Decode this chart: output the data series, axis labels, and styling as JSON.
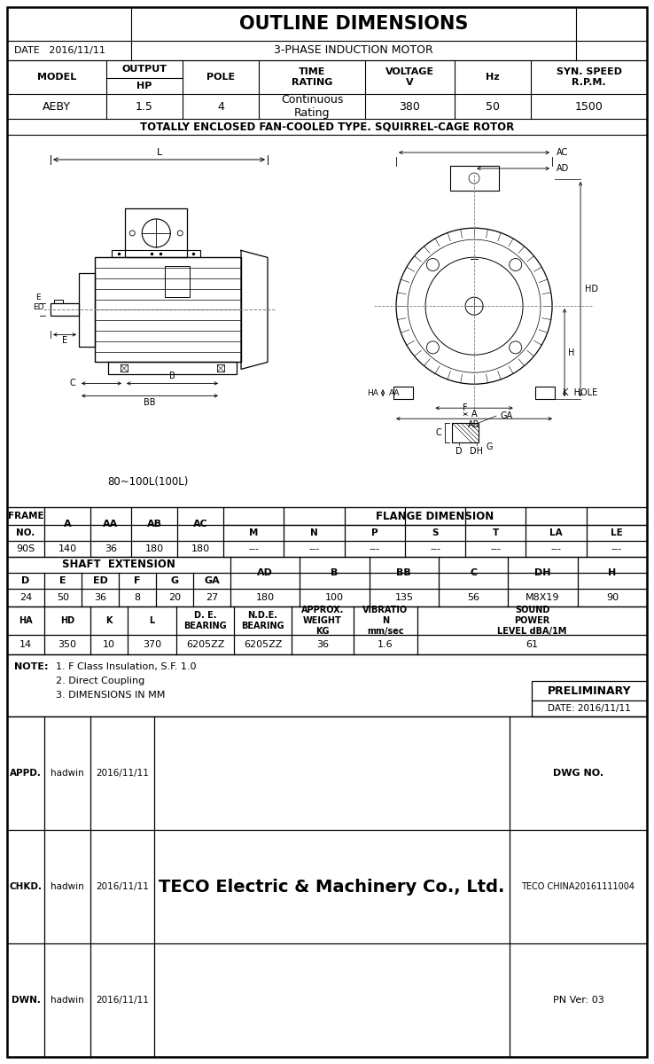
{
  "title": "OUTLINE DIMENSIONS",
  "subtitle": "3-PHASE INDUCTION MOTOR",
  "date": "DATE   2016/11/11",
  "type_desc": "TOTALLY ENCLOSED FAN-COOLED TYPE. SQUIRREL-CAGE ROTOR",
  "model_label": "MODEL",
  "output_label": "OUTPUT",
  "hp_label": "HP",
  "pole_label": "POLE",
  "time_rating_label": "TIME\nRATING",
  "voltage_label": "VOLTAGE\nV",
  "hz_label": "Hz",
  "syn_speed_label": "SYN. SPEED\nR.P.M.",
  "model_val": "AEBY",
  "hp_val": "1.5",
  "pole_val": "4",
  "time_rating_val": "Continuous\nRating",
  "voltage_val": "380",
  "hz_val": "50",
  "syn_speed_val": "1500",
  "frame_no": "90S",
  "A": "140",
  "AA": "36",
  "AB": "180",
  "AC": "180",
  "M": "---",
  "N": "---",
  "P": "---",
  "S": "---",
  "T": "---",
  "LA": "---",
  "LE": "---",
  "D": "24",
  "E": "50",
  "ED": "36",
  "F": "8",
  "G": "20",
  "GA": "27",
  "AD": "180",
  "B": "100",
  "BB": "135",
  "C": "56",
  "DH": "M8X19",
  "H": "90",
  "HA": "14",
  "HD": "350",
  "K": "10",
  "L": "370",
  "DE_BEARING": "6205ZZ",
  "NDE_BEARING": "6205ZZ",
  "WEIGHT": "36",
  "VIBRATION": "1.6",
  "SOUND": "61",
  "note1": "1. F Class Insulation, S.F. 1.0",
  "note2": "2. Direct Coupling",
  "note3": "3. DIMENSIONS IN MM",
  "preliminary": "PRELIMINARY",
  "prelim_date": "DATE: 2016/11/11",
  "appd": "APPD.",
  "appd_name": "hadwin",
  "appd_date": "2016/11/11",
  "chkd": "CHKD.",
  "chkd_name": "hadwin",
  "chkd_date": "2016/11/11",
  "dwn": "DWN.",
  "dwn_name": "hadwin",
  "dwn_date": "2016/11/11",
  "company": "TECO Electric & Machinery Co., Ltd.",
  "dwg_no_label": "DWG NO.",
  "dwg_no_val": "TECO CHINA20161111004",
  "pn_ver": "PN Ver: 03",
  "flange_label": "FLANGE DIMENSION",
  "shaft_label": "SHAFT  EXTENSION",
  "motor_label": "80~100L(100L)"
}
